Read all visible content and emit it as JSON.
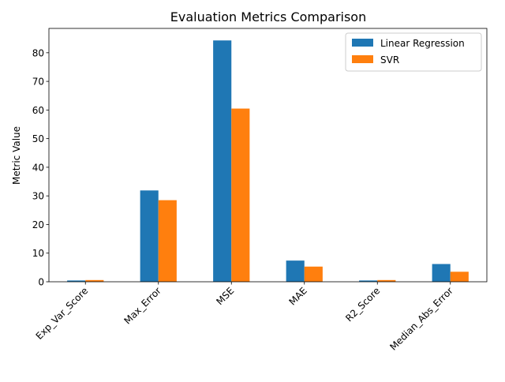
{
  "chart_data": {
    "type": "bar",
    "title": "Evaluation Metrics Comparison",
    "xlabel": "",
    "ylabel": "Metric Value",
    "categories": [
      "Exp_Var_Score",
      "Max_Error",
      "MSE",
      "MAE",
      "R2_Score",
      "Median_Abs_Error"
    ],
    "series": [
      {
        "name": "Linear Regression",
        "color": "#1f77b4",
        "values": [
          0.45,
          31.9,
          84.3,
          7.4,
          0.45,
          6.2
        ]
      },
      {
        "name": "SVR",
        "color": "#ff7f0e",
        "values": [
          0.6,
          28.5,
          60.5,
          5.3,
          0.6,
          3.5
        ]
      }
    ],
    "ylim": [
      0,
      88.5
    ],
    "yticks": [
      0,
      10,
      20,
      30,
      40,
      50,
      60,
      70,
      80
    ],
    "grid": false,
    "legend_position": "top-right",
    "xtick_rotation_deg": 45
  }
}
